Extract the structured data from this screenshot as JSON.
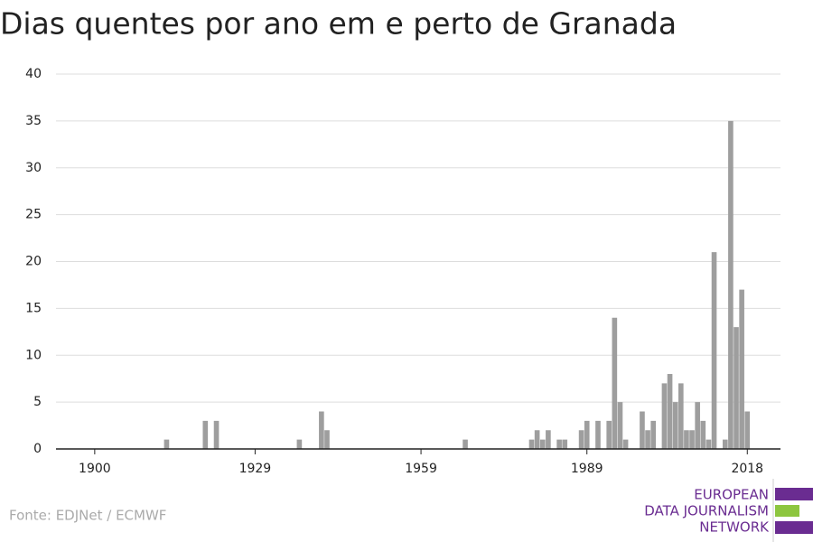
{
  "chart_data": {
    "type": "bar",
    "title": "Dias quentes por ano em e perto de Granada",
    "source": "Fonte: EDJNet / ECMWF",
    "logo": [
      "EUROPEAN",
      "DATA JOURNALISM",
      "NETWORK"
    ],
    "x": [
      1913,
      1920,
      1922,
      1937,
      1941,
      1942,
      1967,
      1979,
      1980,
      1981,
      1982,
      1984,
      1985,
      1988,
      1989,
      1991,
      1993,
      1994,
      1995,
      1996,
      1999,
      2000,
      2001,
      2003,
      2004,
      2005,
      2006,
      2007,
      2008,
      2009,
      2010,
      2011,
      2012,
      2014,
      2015,
      2016,
      2017,
      2018
    ],
    "values": [
      1,
      3,
      3,
      1,
      4,
      2,
      1,
      1,
      2,
      1,
      2,
      1,
      1,
      2,
      3,
      3,
      3,
      14,
      5,
      1,
      4,
      2,
      3,
      7,
      8,
      5,
      7,
      2,
      2,
      5,
      3,
      1,
      21,
      1,
      35,
      13,
      17,
      4
    ],
    "color": "#9e9e9e",
    "xlim": [
      1893,
      2024
    ],
    "xticks": [
      1900,
      1929,
      1959,
      1989,
      2018
    ],
    "ylim": [
      0,
      40
    ],
    "yticks": [
      0,
      5,
      10,
      15,
      20,
      25,
      30,
      35,
      40
    ],
    "grid": true
  }
}
